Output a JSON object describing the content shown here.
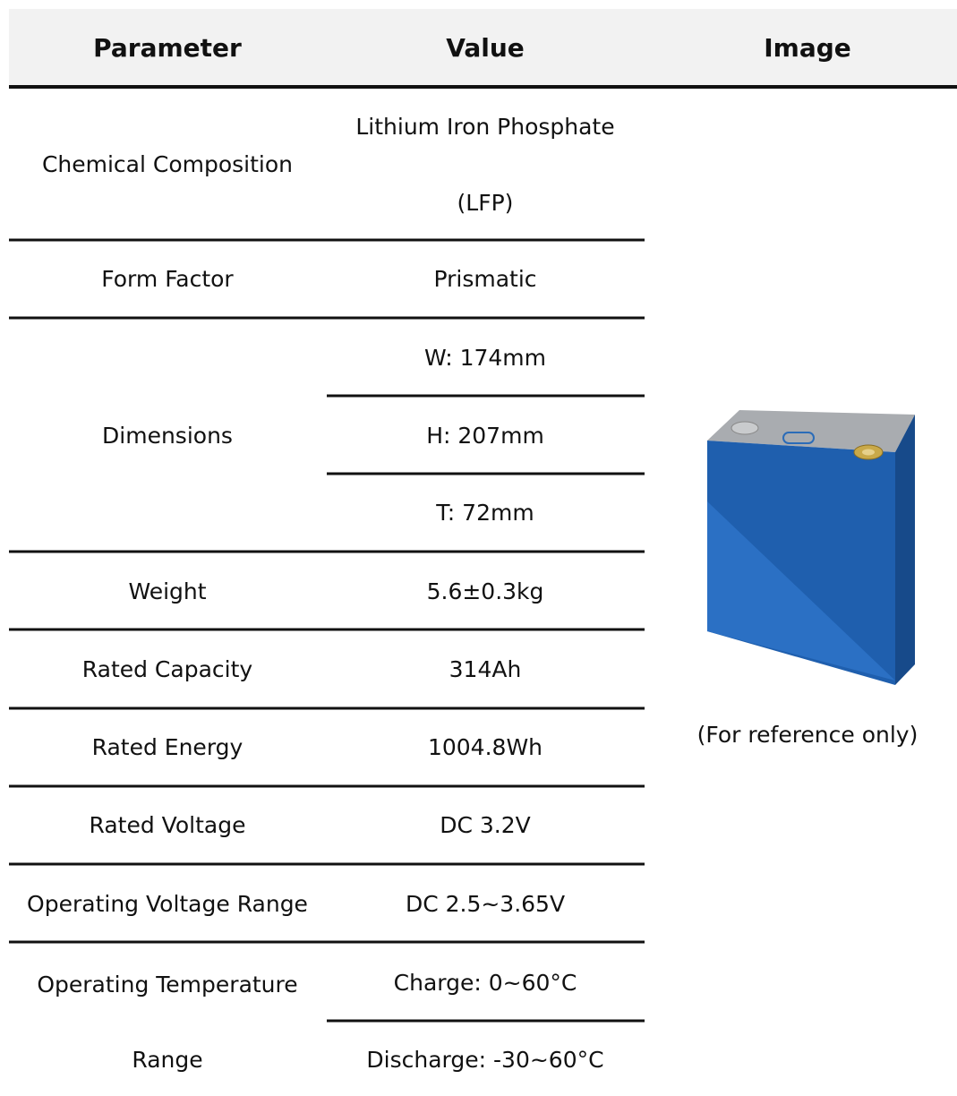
{
  "table": {
    "header": [
      "Parameter",
      "Value",
      "Image"
    ],
    "rows": [
      {
        "parameter": [
          "Chemical Composition"
        ],
        "value": [
          "Lithium Iron Phosphate",
          "(LFP)"
        ]
      },
      {
        "parameter": [
          "Form Factor"
        ],
        "value": [
          "Prismatic"
        ]
      },
      {
        "parameter": [
          "Dimensions"
        ],
        "value": [
          "W: 174mm",
          "H: 207mm",
          "T: 72mm"
        ]
      },
      {
        "parameter": [
          "Weight"
        ],
        "value": [
          "5.6±0.3kg"
        ]
      },
      {
        "parameter": [
          "Rated Capacity"
        ],
        "value": [
          "314Ah"
        ]
      },
      {
        "parameter": [
          "Rated Energy"
        ],
        "value": [
          "1004.8Wh"
        ]
      },
      {
        "parameter": [
          "Rated Voltage"
        ],
        "value": [
          "DC 3.2V"
        ]
      },
      {
        "parameter": [
          "Operating Voltage Range"
        ],
        "value": [
          "DC 2.5~3.65V"
        ]
      },
      {
        "parameter": [
          "Operating Temperature",
          "Range"
        ],
        "value": [
          "Charge: 0~60°C",
          "Discharge: -30~60°C"
        ]
      }
    ],
    "image_caption": "(For reference only)"
  }
}
